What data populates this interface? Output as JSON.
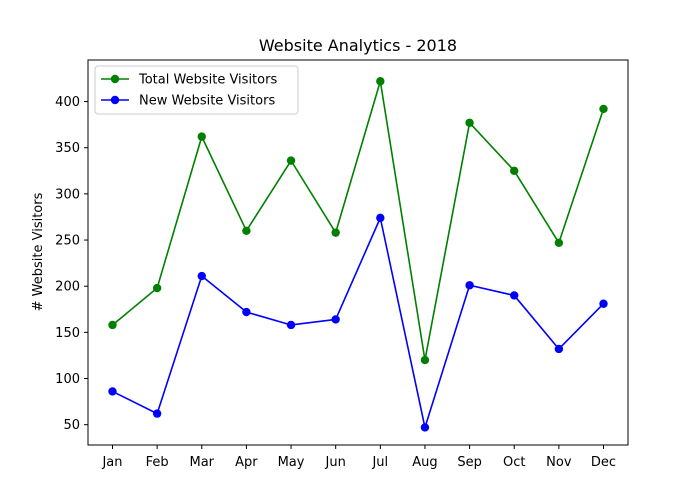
{
  "chart_data": {
    "type": "line",
    "title": "Website Analytics - 2018",
    "xlabel": "",
    "ylabel": "# Website Visitors",
    "categories": [
      "Jan",
      "Feb",
      "Mar",
      "Apr",
      "May",
      "Jun",
      "Jul",
      "Aug",
      "Sep",
      "Oct",
      "Nov",
      "Dec"
    ],
    "ylim": [
      28,
      445
    ],
    "yticks": [
      50,
      100,
      150,
      200,
      250,
      300,
      350,
      400
    ],
    "grid": false,
    "legend_position": "top-left",
    "series": [
      {
        "name": "Total Website Visitors",
        "color": "#008000",
        "marker": "circle",
        "values": [
          158,
          198,
          362,
          260,
          336,
          258,
          422,
          120,
          377,
          325,
          247,
          392
        ]
      },
      {
        "name": "New Website Visitors",
        "color": "#0000ff",
        "marker": "circle",
        "values": [
          86,
          62,
          211,
          172,
          158,
          164,
          274,
          47,
          201,
          190,
          132,
          181
        ]
      }
    ]
  }
}
